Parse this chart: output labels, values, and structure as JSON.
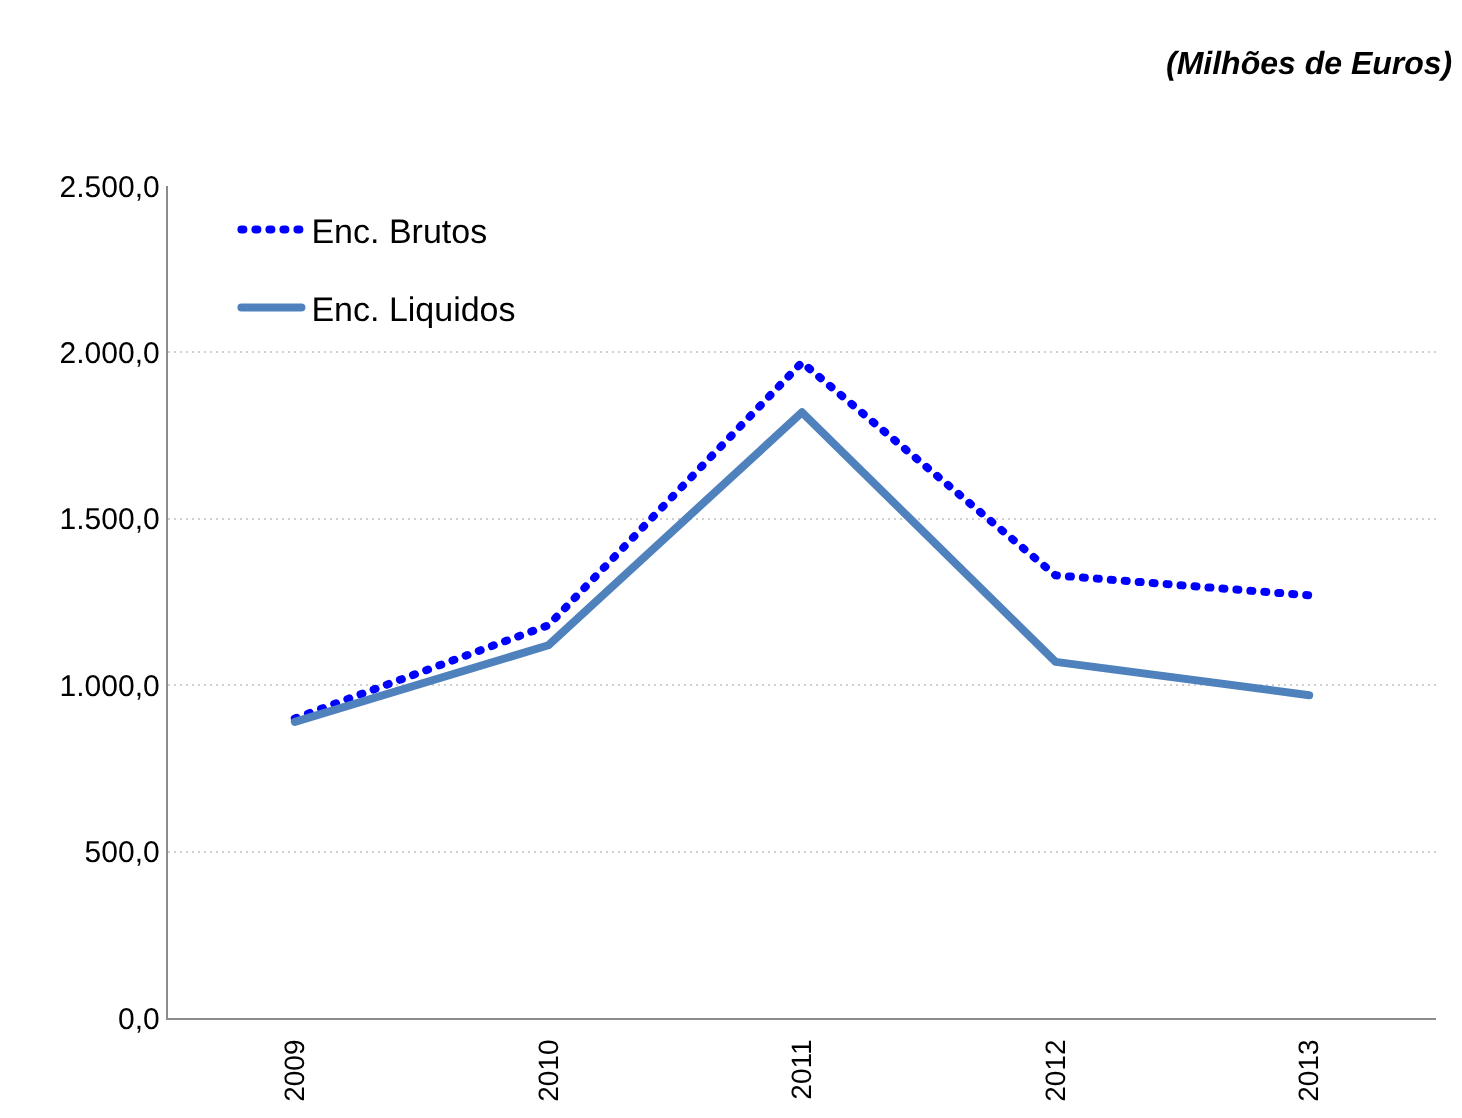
{
  "chart_data": {
    "type": "line",
    "annotations": [
      "(Milhões de Euros)"
    ],
    "categories": [
      "2009",
      "2010",
      "2011",
      "2012",
      "2013"
    ],
    "series": [
      {
        "name": "Enc. Brutos",
        "color": "#0000ff",
        "values": [
          900,
          1180,
          1970,
          1330,
          1270
        ],
        "line_style": "dotted"
      },
      {
        "name": "Enc. Liquidos",
        "color": "#4f81bd",
        "values": [
          890,
          1120,
          1820,
          1070,
          970
        ],
        "line_style": "solid"
      }
    ],
    "ylim": [
      0,
      2500
    ],
    "yticks": [
      {
        "value": 0,
        "label": "0,0"
      },
      {
        "value": 500,
        "label": "500,0"
      },
      {
        "value": 1000,
        "label": "1.000,0"
      },
      {
        "value": 1500,
        "label": "1.500,0"
      },
      {
        "value": 2000,
        "label": "2.000,0"
      },
      {
        "value": 2500,
        "label": "2.500,0"
      }
    ],
    "grid": "y",
    "legend": "top left"
  }
}
